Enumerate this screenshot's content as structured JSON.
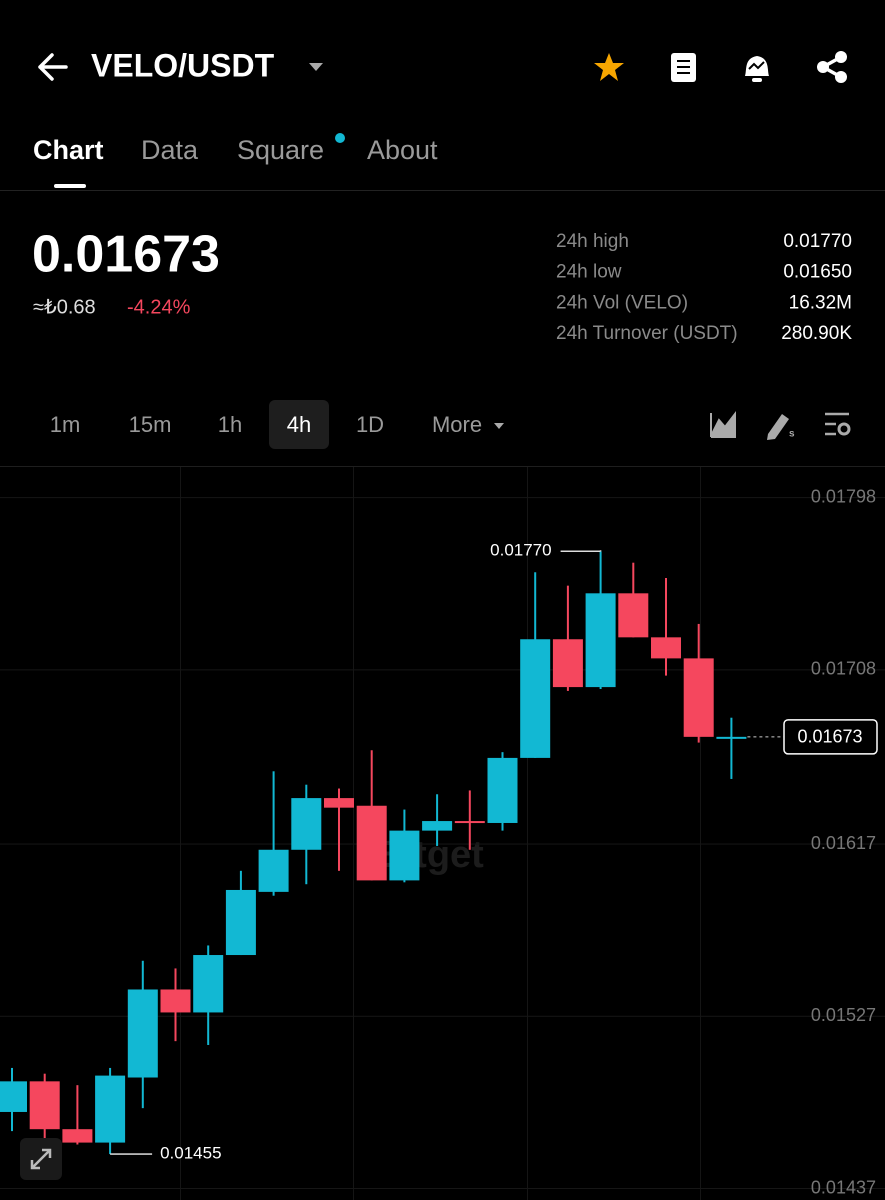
{
  "header": {
    "title": "VELO/USDT"
  },
  "tabs": [
    "Chart",
    "Data",
    "Square",
    "About"
  ],
  "price": {
    "last": "0.01673",
    "fiat": "≈₺0.68",
    "change": "-4.24%"
  },
  "stats": [
    {
      "label": "24h high",
      "value": "0.01770"
    },
    {
      "label": "24h low",
      "value": "0.01650"
    },
    {
      "label": "24h Vol (VELO)",
      "value": "16.32M"
    },
    {
      "label": "24h Turnover (USDT)",
      "value": "280.90K"
    }
  ],
  "intervals": [
    "1m",
    "15m",
    "1h",
    "4h",
    "1D",
    "More"
  ],
  "chart_data": {
    "type": "candlestick",
    "watermark": "Bitget",
    "open": [
      0.01477,
      0.01493,
      0.01468,
      0.01461,
      0.01495,
      0.01541,
      0.01529,
      0.01559,
      0.01592,
      0.01614,
      0.01641,
      0.01637,
      0.01598,
      0.01624,
      0.01629,
      0.01628,
      0.01662,
      0.01724,
      0.01699,
      0.01748,
      0.01725,
      0.01714,
      0.01672
    ],
    "high": [
      0.015,
      0.01497,
      0.01491,
      0.015,
      0.01556,
      0.01552,
      0.01564,
      0.01603,
      0.01655,
      0.01648,
      0.01646,
      0.01666,
      0.01635,
      0.01643,
      0.01645,
      0.01665,
      0.01759,
      0.01752,
      0.0177,
      0.01764,
      0.01756,
      0.01732,
      0.01683
    ],
    "low": [
      0.01467,
      0.01458,
      0.0146,
      0.01455,
      0.01479,
      0.01514,
      0.01512,
      0.01559,
      0.0159,
      0.01596,
      0.01603,
      0.01598,
      0.01597,
      0.01616,
      0.01614,
      0.01624,
      0.01662,
      0.01697,
      0.01698,
      0.01725,
      0.01705,
      0.0167,
      0.01651
    ],
    "close": [
      0.01493,
      0.01468,
      0.01461,
      0.01496,
      0.01541,
      0.01529,
      0.01559,
      0.01593,
      0.01614,
      0.01641,
      0.01636,
      0.01598,
      0.01624,
      0.01629,
      0.01628,
      0.01662,
      0.01724,
      0.01699,
      0.01748,
      0.01725,
      0.01714,
      0.01673,
      0.01673
    ],
    "up_color": "#12b8d3",
    "down_color": "#f5475e",
    "ylim": [
      0.01431,
      0.01814
    ],
    "yticks": [
      0.01798,
      0.01708,
      0.01617,
      0.01527,
      0.01437
    ],
    "grid": true,
    "high_label": {
      "value": 0.0177,
      "label": "0.01770"
    },
    "low_label": 0.01455,
    "last_price": 0.01673
  }
}
